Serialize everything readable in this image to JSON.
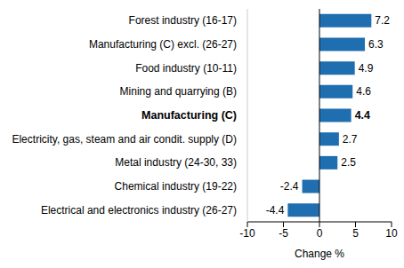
{
  "chart_data": {
    "type": "bar",
    "orientation": "horizontal",
    "categories": [
      "Forest industry (16-17)",
      "Manufacturing (C) excl. (26-27)",
      "Food industry (10-11)",
      "Mining and quarrying (B)",
      "Manufacturing (C)",
      "Electricity, gas, steam and air condit. supply (D)",
      "Metal industry (24-30, 33)",
      "Chemical industry (19-22)",
      "Electrical and electronics industry (26-27)"
    ],
    "values": [
      7.2,
      6.3,
      4.9,
      4.6,
      4.4,
      2.7,
      2.5,
      -2.4,
      -4.4
    ],
    "color": "#1f6eb0",
    "x_label": "Change %",
    "xlim": [
      -10,
      10
    ],
    "xticks": [
      -10,
      -5,
      0,
      5,
      10
    ],
    "grid": false,
    "data_labels": true
  }
}
